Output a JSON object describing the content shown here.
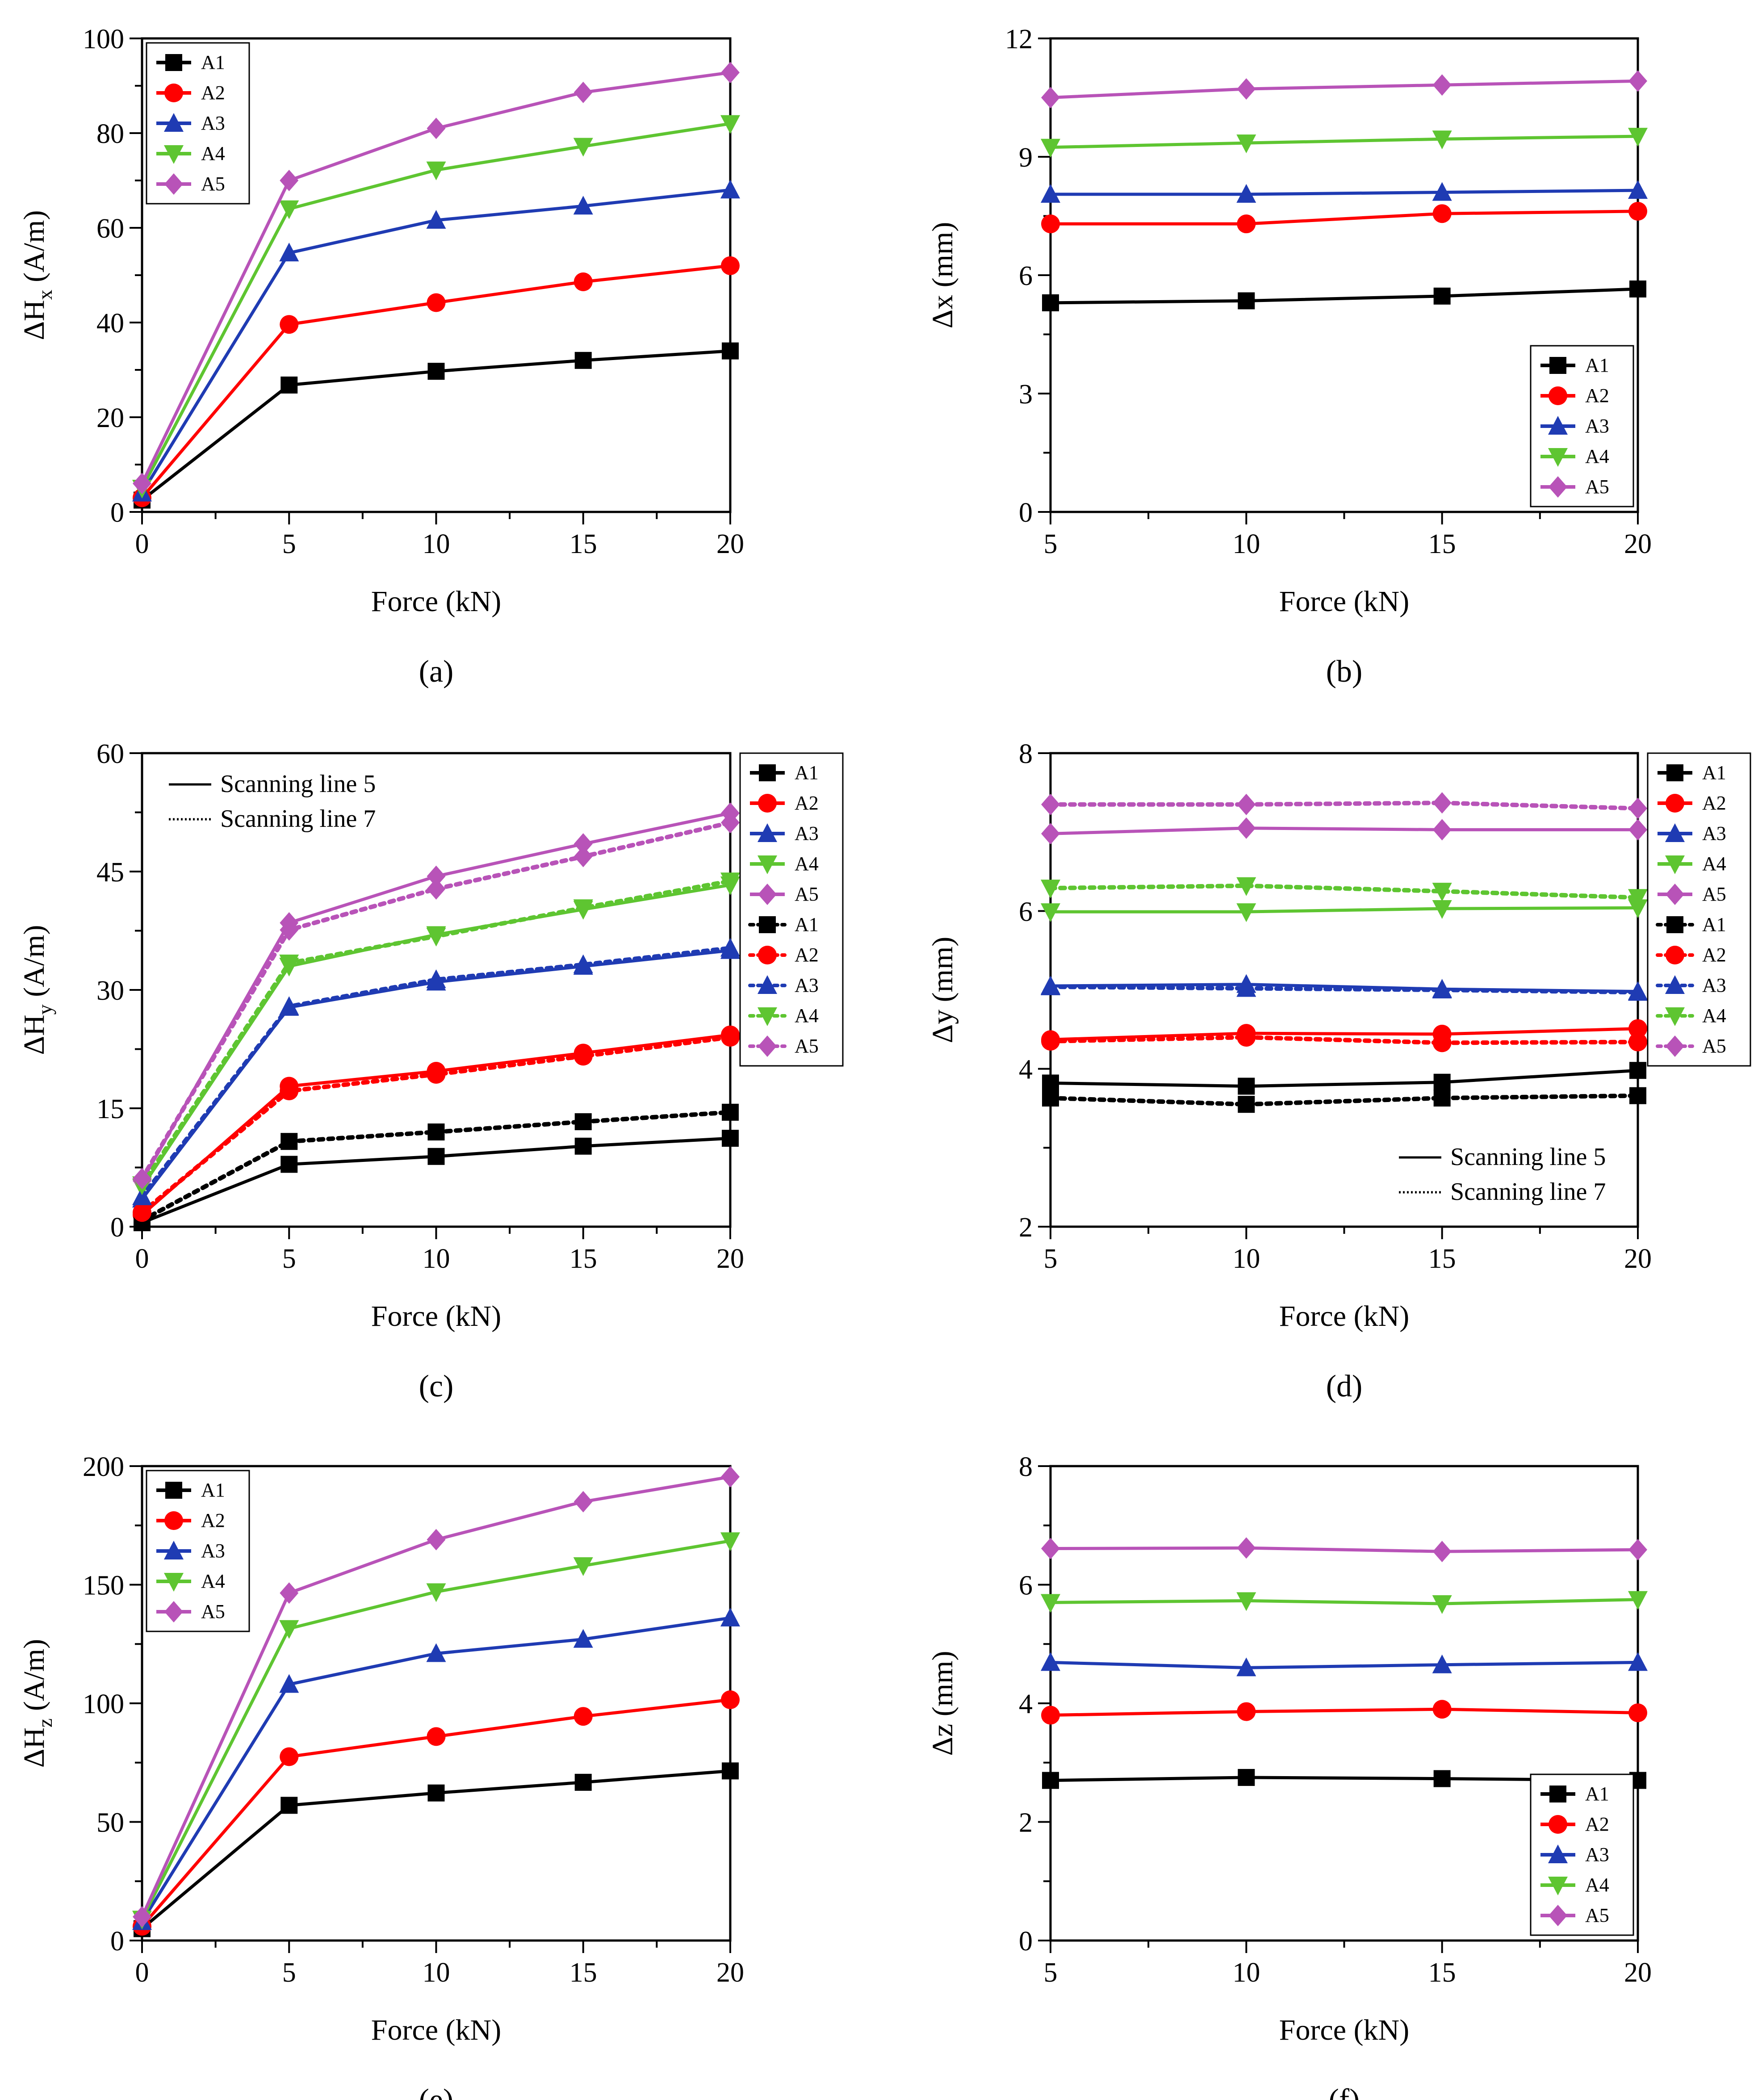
{
  "figure": {
    "colors": {
      "A1": "#000000",
      "A2": "#ff0000",
      "A3": "#1f3bb3",
      "A4": "#5ec531",
      "A5": "#b853b8"
    },
    "markers": {
      "A1": "square",
      "A2": "circle",
      "A3": "triangle-up",
      "A4": "triangle-down",
      "A5": "diamond"
    }
  },
  "chart_data": [
    {
      "id": "a",
      "type": "line",
      "caption": "(a)",
      "xlabel": "Force (kN)",
      "ylabel": "ΔH",
      "ylabel_sub": "x",
      "ylabel_tail": " (A/m)",
      "xlim": [
        0,
        20
      ],
      "ylim": [
        0,
        100
      ],
      "xticks": [
        0,
        5,
        10,
        15,
        20
      ],
      "yticks": [
        0,
        20,
        40,
        60,
        80,
        100
      ],
      "legend": {
        "position": "top-left",
        "entries": [
          "A1",
          "A2",
          "A3",
          "A4",
          "A5"
        ]
      },
      "x": [
        0,
        5,
        10,
        15,
        20
      ],
      "series": [
        {
          "name": "A1",
          "style": "solid",
          "values": [
            2.5,
            26.8,
            29.7,
            32.0,
            34.0
          ]
        },
        {
          "name": "A2",
          "style": "solid",
          "values": [
            3.0,
            39.6,
            44.2,
            48.6,
            52.0
          ]
        },
        {
          "name": "A3",
          "style": "solid",
          "values": [
            4.0,
            54.7,
            61.6,
            64.6,
            68.0
          ]
        },
        {
          "name": "A4",
          "style": "solid",
          "values": [
            5.0,
            64.0,
            72.2,
            77.2,
            82.0
          ]
        },
        {
          "name": "A5",
          "style": "solid",
          "values": [
            6.0,
            70.0,
            81.0,
            88.6,
            92.8
          ]
        }
      ]
    },
    {
      "id": "b",
      "type": "line",
      "caption": "(b)",
      "xlabel": "Force (kN)",
      "ylabel": "Δx (mm)",
      "ylabel_sub": "",
      "ylabel_tail": "",
      "xlim": [
        5,
        20
      ],
      "ylim": [
        0,
        12
      ],
      "xticks": [
        5,
        10,
        15,
        20
      ],
      "yticks": [
        0,
        3,
        6,
        9,
        12
      ],
      "legend": {
        "position": "bottom-right",
        "entries": [
          "A1",
          "A2",
          "A3",
          "A4",
          "A5"
        ]
      },
      "x": [
        5,
        10,
        15,
        20
      ],
      "series": [
        {
          "name": "A1",
          "style": "solid",
          "values": [
            5.3,
            5.35,
            5.47,
            5.65
          ]
        },
        {
          "name": "A2",
          "style": "solid",
          "values": [
            7.3,
            7.3,
            7.56,
            7.62
          ]
        },
        {
          "name": "A3",
          "style": "solid",
          "values": [
            8.05,
            8.05,
            8.1,
            8.15
          ]
        },
        {
          "name": "A4",
          "style": "solid",
          "values": [
            9.24,
            9.35,
            9.45,
            9.52
          ]
        },
        {
          "name": "A5",
          "style": "solid",
          "values": [
            10.5,
            10.72,
            10.82,
            10.92
          ]
        }
      ]
    },
    {
      "id": "c",
      "type": "line",
      "caption": "(c)",
      "xlabel": "Force (kN)",
      "ylabel": "ΔH",
      "ylabel_sub": "y",
      "ylabel_tail": " (A/m)",
      "xlim": [
        0,
        20
      ],
      "ylim": [
        0,
        60
      ],
      "xticks": [
        0,
        5,
        10,
        15,
        20
      ],
      "yticks": [
        0,
        15,
        30,
        45,
        60
      ],
      "legend": {
        "position": "outside-right",
        "entries": [
          "A1",
          "A2",
          "A3",
          "A4",
          "A5",
          "A1",
          "A2",
          "A3",
          "A4",
          "A5"
        ]
      },
      "style_legend": [
        {
          "style": "solid",
          "label": "Scanning line 5"
        },
        {
          "style": "dotted",
          "label": "Scanning line 7"
        }
      ],
      "x": [
        0,
        5,
        10,
        15,
        20
      ],
      "series": [
        {
          "name": "A1",
          "style": "solid",
          "values": [
            0.5,
            7.9,
            8.9,
            10.2,
            11.2
          ]
        },
        {
          "name": "A2",
          "style": "solid",
          "values": [
            1.5,
            17.8,
            19.7,
            22.0,
            24.3
          ]
        },
        {
          "name": "A3",
          "style": "solid",
          "values": [
            3.5,
            27.8,
            31.0,
            33.0,
            35.0
          ]
        },
        {
          "name": "A4",
          "style": "solid",
          "values": [
            5.0,
            33.0,
            37.0,
            40.2,
            43.3
          ]
        },
        {
          "name": "A5",
          "style": "solid",
          "values": [
            5.8,
            38.5,
            44.4,
            48.5,
            52.4
          ]
        },
        {
          "name": "A1",
          "style": "dotted",
          "values": [
            0.8,
            10.8,
            12.0,
            13.3,
            14.5
          ]
        },
        {
          "name": "A2",
          "style": "dotted",
          "values": [
            1.8,
            17.2,
            19.3,
            21.6,
            24.0
          ]
        },
        {
          "name": "A3",
          "style": "dotted",
          "values": [
            3.8,
            27.9,
            31.3,
            33.2,
            35.3
          ]
        },
        {
          "name": "A4",
          "style": "dotted",
          "values": [
            5.3,
            33.4,
            36.8,
            40.4,
            43.8
          ]
        },
        {
          "name": "A5",
          "style": "dotted",
          "values": [
            6.1,
            37.6,
            42.8,
            46.9,
            51.2
          ]
        }
      ]
    },
    {
      "id": "d",
      "type": "line",
      "caption": "(d)",
      "xlabel": "Force (kN)",
      "ylabel": "Δy (mm)",
      "ylabel_sub": "",
      "ylabel_tail": "",
      "xlim": [
        5,
        20
      ],
      "ylim": [
        2,
        8
      ],
      "xticks": [
        5,
        10,
        15,
        20
      ],
      "yticks": [
        2,
        4,
        6,
        8
      ],
      "legend": {
        "position": "outside-right",
        "entries": [
          "A1",
          "A2",
          "A3",
          "A4",
          "A5",
          "A1",
          "A2",
          "A3",
          "A4",
          "A5"
        ]
      },
      "style_legend": [
        {
          "style": "solid",
          "label": "Scanning line 5"
        },
        {
          "style": "dotted",
          "label": "Scanning line 7"
        }
      ],
      "x": [
        5,
        10,
        15,
        20
      ],
      "series": [
        {
          "name": "A1",
          "style": "solid",
          "values": [
            3.82,
            3.78,
            3.83,
            3.98
          ]
        },
        {
          "name": "A2",
          "style": "solid",
          "values": [
            4.37,
            4.45,
            4.44,
            4.51
          ]
        },
        {
          "name": "A3",
          "style": "solid",
          "values": [
            5.05,
            5.07,
            5.01,
            4.98
          ]
        },
        {
          "name": "A4",
          "style": "solid",
          "values": [
            5.99,
            5.99,
            6.03,
            6.04
          ]
        },
        {
          "name": "A5",
          "style": "solid",
          "values": [
            6.98,
            7.05,
            7.03,
            7.03
          ]
        },
        {
          "name": "A1",
          "style": "dotted",
          "values": [
            3.63,
            3.55,
            3.63,
            3.66
          ]
        },
        {
          "name": "A2",
          "style": "dotted",
          "values": [
            4.35,
            4.4,
            4.33,
            4.34
          ]
        },
        {
          "name": "A3",
          "style": "dotted",
          "values": [
            5.04,
            5.02,
            5.0,
            4.97
          ]
        },
        {
          "name": "A4",
          "style": "dotted",
          "values": [
            6.29,
            6.32,
            6.25,
            6.17
          ]
        },
        {
          "name": "A5",
          "style": "dotted",
          "values": [
            7.35,
            7.35,
            7.37,
            7.3
          ]
        }
      ]
    },
    {
      "id": "e",
      "type": "line",
      "caption": "(e)",
      "xlabel": "Force (kN)",
      "ylabel": "ΔH",
      "ylabel_sub": "z",
      "ylabel_tail": " (A/m)",
      "xlim": [
        0,
        20
      ],
      "ylim": [
        0,
        200
      ],
      "xticks": [
        0,
        5,
        10,
        15,
        20
      ],
      "yticks": [
        0,
        50,
        100,
        150,
        200
      ],
      "legend": {
        "position": "top-left",
        "entries": [
          "A1",
          "A2",
          "A3",
          "A4",
          "A5"
        ]
      },
      "x": [
        0,
        5,
        10,
        15,
        20
      ],
      "series": [
        {
          "name": "A1",
          "style": "solid",
          "values": [
            5.0,
            57.0,
            62.2,
            66.7,
            71.5
          ]
        },
        {
          "name": "A2",
          "style": "solid",
          "values": [
            6.0,
            77.5,
            86.0,
            94.5,
            101.5
          ]
        },
        {
          "name": "A3",
          "style": "solid",
          "values": [
            8.0,
            108.0,
            121.0,
            127.0,
            136.0
          ]
        },
        {
          "name": "A4",
          "style": "solid",
          "values": [
            9.0,
            131.5,
            147.0,
            158.0,
            168.5
          ]
        },
        {
          "name": "A5",
          "style": "solid",
          "values": [
            10.0,
            146.5,
            169.0,
            185.0,
            195.5
          ]
        }
      ]
    },
    {
      "id": "f",
      "type": "line",
      "caption": "(f)",
      "xlabel": "Force (kN)",
      "ylabel": "Δz (mm)",
      "ylabel_sub": "",
      "ylabel_tail": "",
      "xlim": [
        5,
        20
      ],
      "ylim": [
        0,
        8
      ],
      "xticks": [
        5,
        10,
        15,
        20
      ],
      "yticks": [
        0,
        2,
        4,
        6,
        8
      ],
      "legend": {
        "position": "bottom-right",
        "entries": [
          "A1",
          "A2",
          "A3",
          "A4",
          "A5"
        ]
      },
      "x": [
        5,
        10,
        15,
        20
      ],
      "series": [
        {
          "name": "A1",
          "style": "solid",
          "values": [
            2.7,
            2.75,
            2.73,
            2.7
          ]
        },
        {
          "name": "A2",
          "style": "solid",
          "values": [
            3.8,
            3.86,
            3.9,
            3.84
          ]
        },
        {
          "name": "A3",
          "style": "solid",
          "values": [
            4.69,
            4.6,
            4.65,
            4.69
          ]
        },
        {
          "name": "A4",
          "style": "solid",
          "values": [
            5.7,
            5.73,
            5.68,
            5.75
          ]
        },
        {
          "name": "A5",
          "style": "solid",
          "values": [
            6.61,
            6.62,
            6.56,
            6.59
          ]
        }
      ]
    }
  ]
}
